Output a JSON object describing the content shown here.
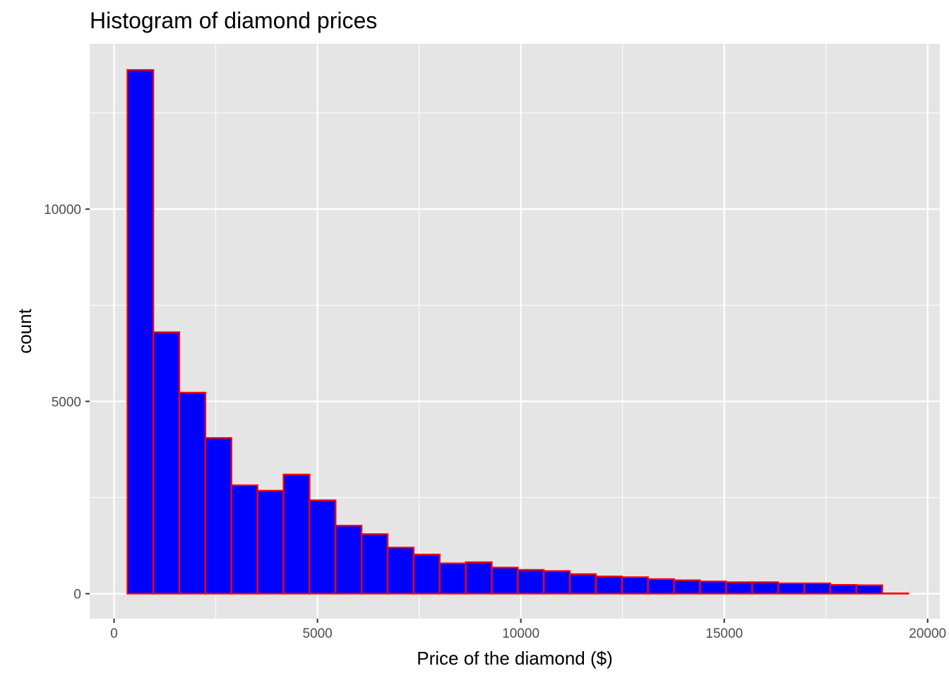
{
  "chart_data": {
    "type": "bar",
    "subtype": "histogram",
    "title": "Histogram of diamond prices",
    "xlabel": "Price of the diamond ($)",
    "ylabel": "count",
    "xlim": [
      -600,
      20300
    ],
    "ylim": [
      -650,
      14300
    ],
    "x_ticks": [
      0,
      5000,
      10000,
      15000,
      20000
    ],
    "x_tick_labels": [
      "0",
      "5000",
      "10000",
      "15000",
      "20000"
    ],
    "y_ticks": [
      0,
      5000,
      10000
    ],
    "y_tick_labels": [
      "0",
      "5000",
      "10000"
    ],
    "grid": true,
    "background_color": "#e5e5e5",
    "grid_color": "#ffffff",
    "fill_color": "#0000ff",
    "edge_color": "#ff0000",
    "bins": [
      {
        "x0": 326,
        "x1": 966,
        "count": 13620
      },
      {
        "x0": 966,
        "x1": 1606,
        "count": 6800
      },
      {
        "x0": 1606,
        "x1": 2246,
        "count": 5230
      },
      {
        "x0": 2246,
        "x1": 2886,
        "count": 4050
      },
      {
        "x0": 2886,
        "x1": 3526,
        "count": 2820
      },
      {
        "x0": 3526,
        "x1": 4166,
        "count": 2680
      },
      {
        "x0": 4166,
        "x1": 4806,
        "count": 3100
      },
      {
        "x0": 4806,
        "x1": 5446,
        "count": 2430
      },
      {
        "x0": 5446,
        "x1": 6086,
        "count": 1770
      },
      {
        "x0": 6086,
        "x1": 6726,
        "count": 1550
      },
      {
        "x0": 6726,
        "x1": 7366,
        "count": 1200
      },
      {
        "x0": 7366,
        "x1": 8006,
        "count": 1020
      },
      {
        "x0": 8006,
        "x1": 8646,
        "count": 790
      },
      {
        "x0": 8646,
        "x1": 9286,
        "count": 820
      },
      {
        "x0": 9286,
        "x1": 9926,
        "count": 680
      },
      {
        "x0": 9926,
        "x1": 10566,
        "count": 620
      },
      {
        "x0": 10566,
        "x1": 11206,
        "count": 590
      },
      {
        "x0": 11206,
        "x1": 11846,
        "count": 510
      },
      {
        "x0": 11846,
        "x1": 12486,
        "count": 450
      },
      {
        "x0": 12486,
        "x1": 13126,
        "count": 430
      },
      {
        "x0": 13126,
        "x1": 13766,
        "count": 380
      },
      {
        "x0": 13766,
        "x1": 14406,
        "count": 350
      },
      {
        "x0": 14406,
        "x1": 15046,
        "count": 320
      },
      {
        "x0": 15046,
        "x1": 15686,
        "count": 300
      },
      {
        "x0": 15686,
        "x1": 16326,
        "count": 300
      },
      {
        "x0": 16326,
        "x1": 16966,
        "count": 270
      },
      {
        "x0": 16966,
        "x1": 17606,
        "count": 270
      },
      {
        "x0": 17606,
        "x1": 18246,
        "count": 230
      },
      {
        "x0": 18246,
        "x1": 18886,
        "count": 220
      },
      {
        "x0": 18886,
        "x1": 19526,
        "count": 10
      }
    ]
  }
}
